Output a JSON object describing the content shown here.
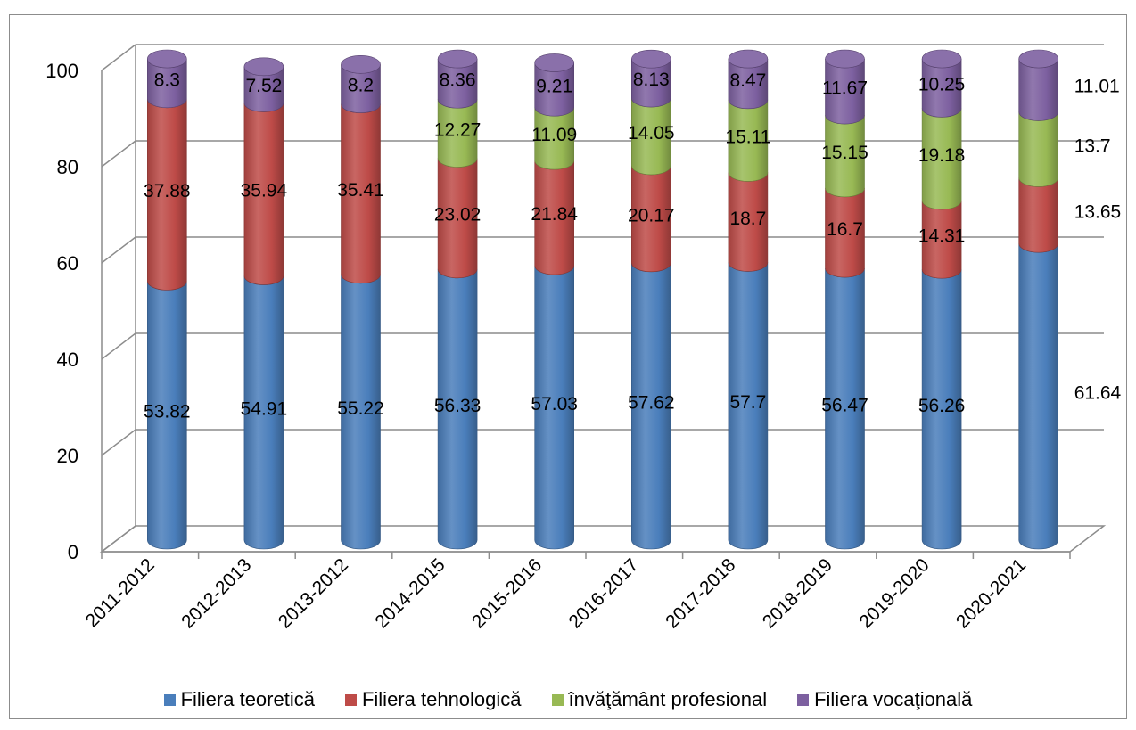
{
  "chart_data": {
    "type": "bar",
    "stacked": true,
    "style": "3d-cylinder",
    "categories": [
      "2011-2012",
      "2012-2013",
      "2013-2012",
      "2014-2015",
      "2015-2016",
      "2016-2017",
      "2017-2018",
      "2018-2019",
      "2019-2020",
      "2020-2021"
    ],
    "ylim": [
      0,
      100
    ],
    "yticks": [
      0,
      20,
      40,
      60,
      80,
      100
    ],
    "grid": true,
    "legend_position": "bottom",
    "series": [
      {
        "name": "Filiera teoretică",
        "color": "#4a7ebb",
        "values": [
          53.82,
          54.91,
          55.22,
          56.33,
          57.03,
          57.62,
          57.7,
          56.47,
          56.26,
          61.64
        ],
        "labels": [
          "53.82",
          "54.91",
          "55.22",
          "56.33",
          "57.03",
          "57.62",
          "57.7",
          "56.47",
          "56.26",
          "61.64"
        ]
      },
      {
        "name": "Filiera tehnologică",
        "color": "#be4b48",
        "values": [
          37.88,
          35.94,
          35.41,
          23.02,
          21.84,
          20.17,
          18.7,
          16.7,
          14.31,
          13.65
        ],
        "labels": [
          "37.88",
          "35.94",
          "35.41",
          "23.02",
          "21.84",
          "20.17",
          "18.7",
          "16.7",
          "14.31",
          "13.65"
        ]
      },
      {
        "name": "învăţământ profesional",
        "color": "#98b954",
        "values": [
          0,
          0,
          0,
          12.27,
          11.09,
          14.05,
          15.11,
          15.15,
          19.18,
          13.7
        ],
        "labels": [
          "",
          "",
          "",
          "12.27",
          "11.09",
          "14.05",
          "15.11",
          "15.15",
          "19.18",
          "13.7"
        ]
      },
      {
        "name": "Filiera vocaţională",
        "color": "#7d60a0",
        "values": [
          8.3,
          7.52,
          8.2,
          8.36,
          9.21,
          8.13,
          8.47,
          11.67,
          10.25,
          11.01
        ],
        "labels": [
          "8.3",
          "7.52",
          "8.2",
          "8.36",
          "9.21",
          "8.13",
          "8.47",
          "11.67",
          "10.25",
          "11.01"
        ]
      }
    ]
  }
}
